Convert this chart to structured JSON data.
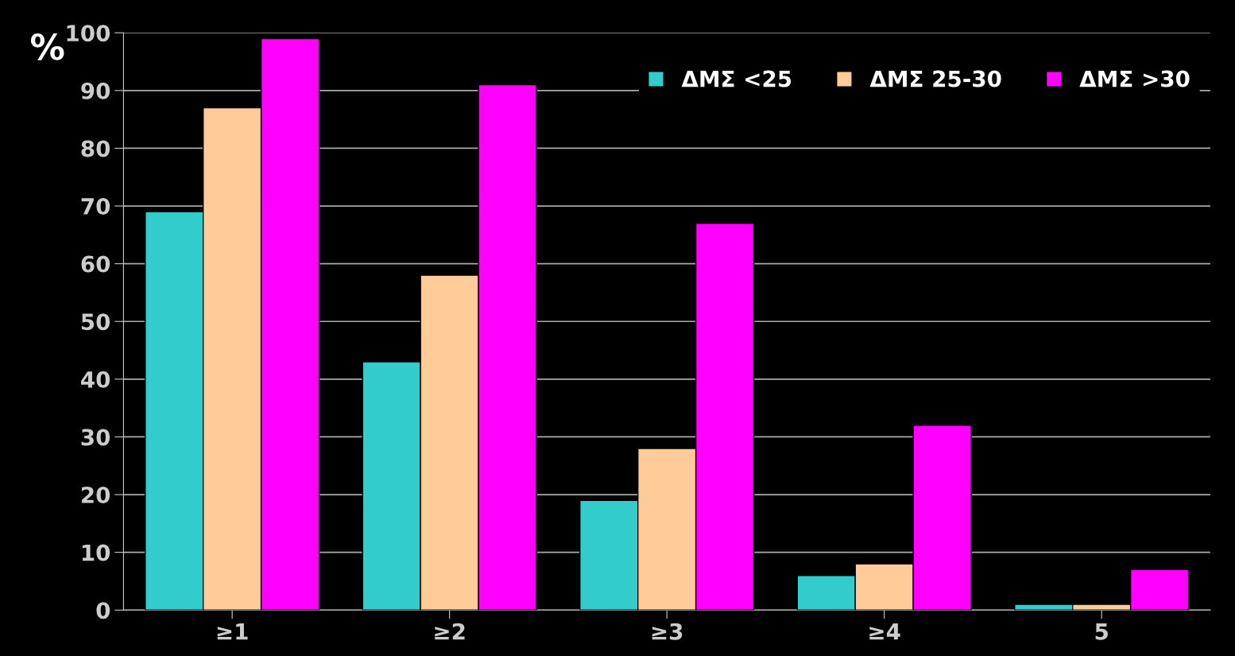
{
  "chart_data": {
    "type": "bar",
    "ylabel": "%",
    "categories": [
      "≥1",
      "≥2",
      "≥3",
      "≥4",
      "5"
    ],
    "series": [
      {
        "name": "ΔΜΣ <25",
        "color": "#33cccc",
        "values": [
          69,
          43,
          19,
          6,
          1
        ]
      },
      {
        "name": "ΔΜΣ 25-30",
        "color": "#ffcc99",
        "values": [
          87,
          58,
          28,
          8,
          1
        ]
      },
      {
        "name": "ΔΜΣ >30",
        "color": "#ff00ff",
        "values": [
          99,
          91,
          67,
          32,
          7
        ]
      }
    ],
    "ylim": [
      0,
      100
    ],
    "yticks": [
      0,
      10,
      20,
      30,
      40,
      50,
      60,
      70,
      80,
      90,
      100
    ],
    "grid": "y",
    "legend": "top right"
  }
}
